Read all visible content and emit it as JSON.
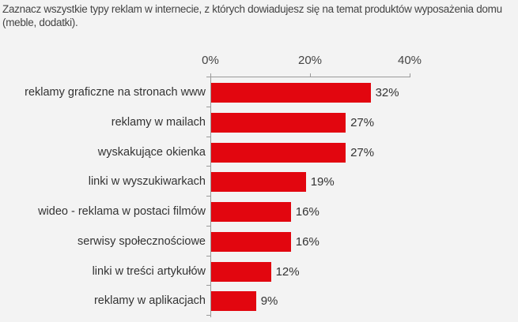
{
  "title": "Zaznacz wszystkie typy reklam w internecie, z których dowiadujesz się na temat produktów wyposażenia domu (meble, dodatki).",
  "chart_data": {
    "type": "bar",
    "orientation": "horizontal",
    "title": "Zaznacz wszystkie typy reklam w internecie, z których dowiadujesz się na temat produktów wyposażenia domu (meble, dodatki).",
    "categories": [
      "reklamy graficzne na stronach www",
      "reklamy w mailach",
      "wyskakujące okienka",
      "linki w wyszukiwarkach",
      "wideo - reklama w postaci filmów",
      "serwisy społecznościowe",
      "linki w treści artykułów",
      "reklamy w aplikacjach"
    ],
    "values": [
      32,
      27,
      27,
      19,
      16,
      16,
      12,
      9
    ],
    "value_labels": [
      "32%",
      "27%",
      "27%",
      "19%",
      "16%",
      "16%",
      "12%",
      "9%"
    ],
    "xlabel": "",
    "ylabel": "",
    "xlim": [
      0,
      40
    ],
    "xticks": [
      "0%",
      "20%",
      "40%"
    ],
    "axis_position": "top",
    "grid": false,
    "legend": null,
    "bar_color": "#e2060f"
  }
}
